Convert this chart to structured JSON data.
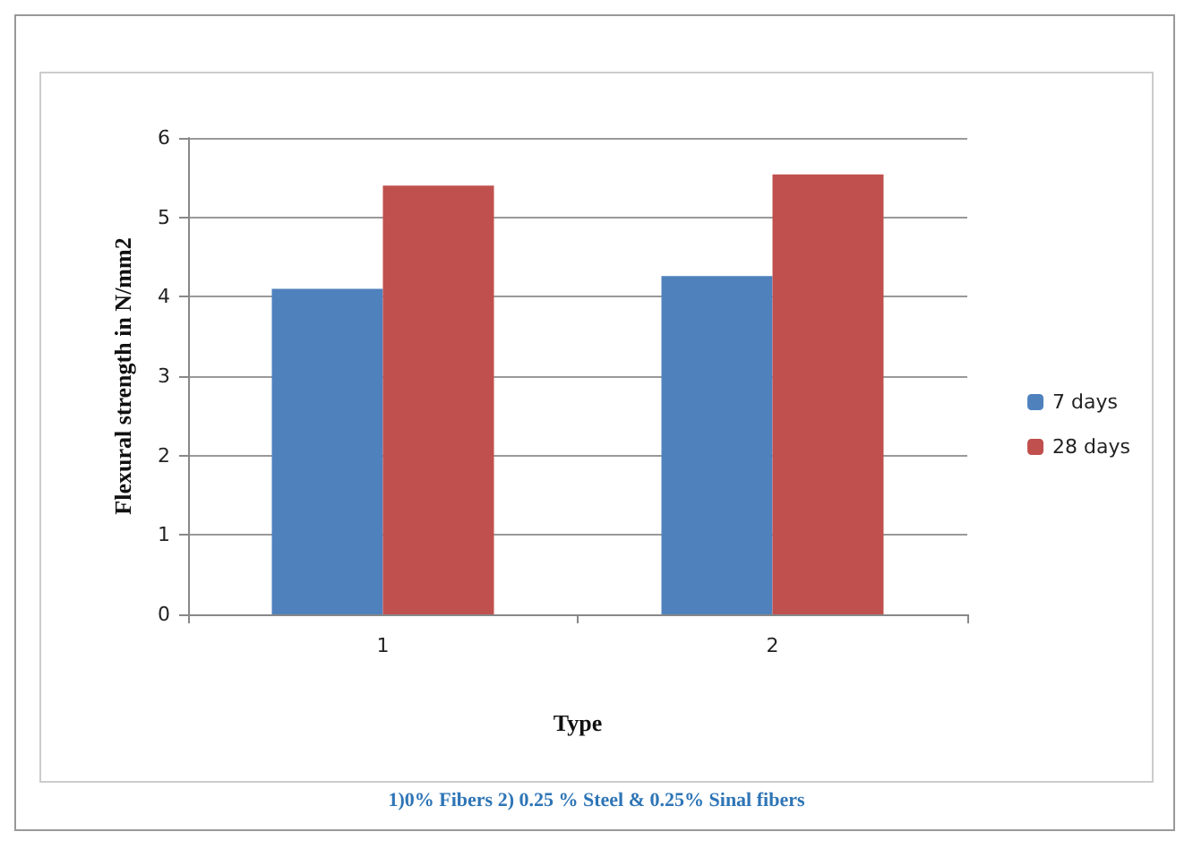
{
  "chart_data": {
    "type": "bar",
    "xlabel": "Type",
    "ylabel": "Flexural strength in N/mm2",
    "categories": [
      "1",
      "2"
    ],
    "series": [
      {
        "name": "7 days",
        "color": "#4f81bd",
        "values": [
          4.1,
          4.26
        ]
      },
      {
        "name": "28 days",
        "color": "#c0504d",
        "values": [
          5.4,
          5.54
        ]
      }
    ],
    "ylim": [
      0,
      6
    ],
    "yticks": [
      0,
      1,
      2,
      3,
      4,
      5,
      6
    ],
    "grid": "y",
    "legend": "right",
    "annotations": [
      "1)0% Fibers 2) 0.25 % Steel & 0.25% Sinal fibers"
    ]
  }
}
